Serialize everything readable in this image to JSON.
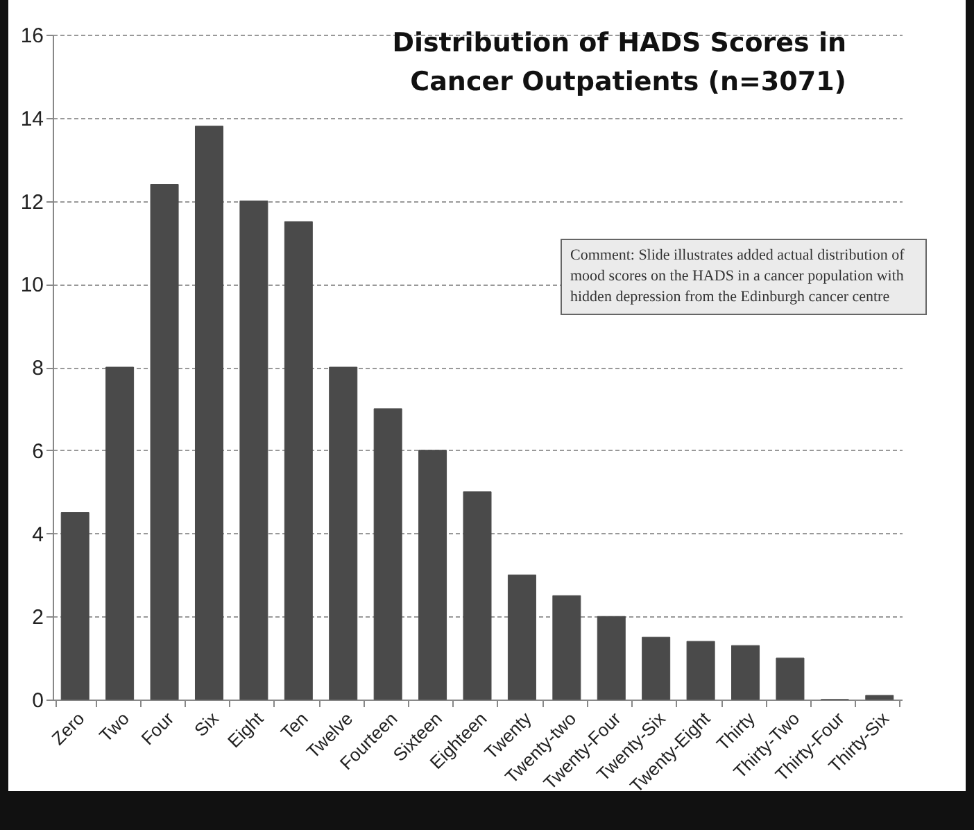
{
  "chart_data": {
    "type": "bar",
    "title": "Distribution of HADS Scores in Cancer Outpatients (n=3071)",
    "categories": [
      "Zero",
      "Two",
      "Four",
      "Six",
      "Eight",
      "Ten",
      "Twelve",
      "Fourteen",
      "Sixteen",
      "Eighteen",
      "Twenty",
      "Twenty-two",
      "Twenty-Four",
      "Twenty-Six",
      "Twenty-Eight",
      "Thirty",
      "Thirty-Two",
      "Thirty-Four",
      "Thirty-Six"
    ],
    "values": [
      4.5,
      8,
      12.4,
      13.8,
      12,
      11.5,
      8,
      7,
      6,
      5,
      3,
      2.5,
      2,
      1.5,
      1.4,
      1.3,
      1.0,
      0,
      0.1
    ],
    "color": "#4a4a4a",
    "ylim": [
      0,
      16
    ],
    "yticks": [
      0,
      2,
      4,
      6,
      8,
      10,
      12,
      14,
      16
    ],
    "grid": "y",
    "annotations": [
      "Comment: Slide illustrates added actual distribution of mood scores on the HADS in a cancer population with hidden depression from the Edinburgh cancer centre"
    ]
  }
}
